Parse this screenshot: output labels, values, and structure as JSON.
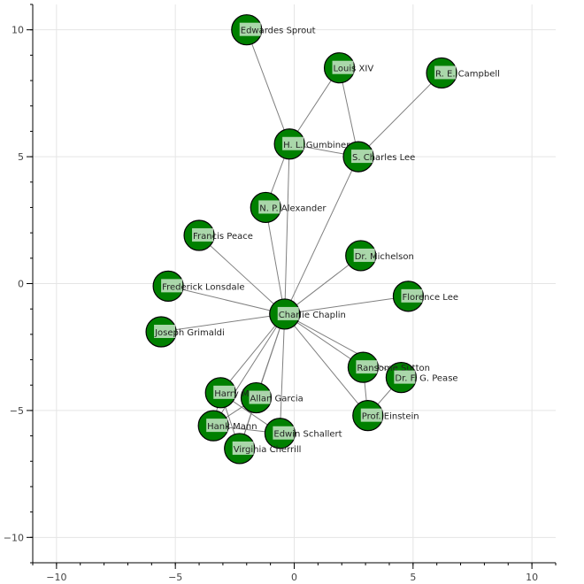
{
  "chart_data": {
    "type": "network",
    "title": "",
    "xlabel": "",
    "ylabel": "",
    "xlim": [
      -11,
      11
    ],
    "ylim": [
      -11,
      11
    ],
    "xticks": [
      -10,
      -5,
      0,
      5,
      10
    ],
    "yticks": [
      -10,
      -5,
      0,
      5,
      10
    ],
    "xtick_labels": [
      "−10",
      "−5",
      "0",
      "5",
      "10"
    ],
    "ytick_labels": [
      "−10",
      "−5",
      "0",
      "5",
      "10"
    ],
    "grid": true,
    "colors": {
      "node_fill": "#008000",
      "node_stroke": "#000000",
      "edge": "#808080",
      "label_bg": "#c8e6c8",
      "grid": "#e5e5e5",
      "axis": "#000000"
    },
    "nodes": [
      {
        "name": "Charlie Chaplin",
        "x": -0.4,
        "y": -1.2
      },
      {
        "name": "Edwardes Sprout",
        "x": -2.0,
        "y": 10.0
      },
      {
        "name": "Louis XIV",
        "x": 1.9,
        "y": 8.5
      },
      {
        "name": "R. E. Campbell",
        "x": 6.2,
        "y": 8.3
      },
      {
        "name": "H. L. Gumbiner",
        "x": -0.2,
        "y": 5.5
      },
      {
        "name": "S. Charles Lee",
        "x": 2.7,
        "y": 5.0
      },
      {
        "name": "N. P. Alexander",
        "x": -1.2,
        "y": 3.0
      },
      {
        "name": "Francis Peace",
        "x": -4.0,
        "y": 1.9
      },
      {
        "name": "Dr. Michelson",
        "x": 2.8,
        "y": 1.1
      },
      {
        "name": "Frederick Lonsdale",
        "x": -5.3,
        "y": -0.1
      },
      {
        "name": "Florence Lee",
        "x": 4.8,
        "y": -0.5
      },
      {
        "name": "Joseph Grimaldi",
        "x": -5.6,
        "y": -1.9
      },
      {
        "name": "Ransome Sutton",
        "x": 2.9,
        "y": -3.3
      },
      {
        "name": "Dr. F. G. Pease",
        "x": 4.5,
        "y": -3.7
      },
      {
        "name": "Harry Myers",
        "x": -3.1,
        "y": -4.3
      },
      {
        "name": "Allan Garcia",
        "x": -1.6,
        "y": -4.5
      },
      {
        "name": "Prof. Einstein",
        "x": 3.1,
        "y": -5.2
      },
      {
        "name": "Hank Mann",
        "x": -3.4,
        "y": -5.6
      },
      {
        "name": "Edwin Schallert",
        "x": -0.6,
        "y": -5.9
      },
      {
        "name": "Virginia Cherrill",
        "x": -2.3,
        "y": -6.5
      }
    ],
    "edges": [
      [
        "Charlie Chaplin",
        "H. L. Gumbiner"
      ],
      [
        "Charlie Chaplin",
        "S. Charles Lee"
      ],
      [
        "Charlie Chaplin",
        "N. P. Alexander"
      ],
      [
        "Charlie Chaplin",
        "Francis Peace"
      ],
      [
        "Charlie Chaplin",
        "Dr. Michelson"
      ],
      [
        "Charlie Chaplin",
        "Frederick Lonsdale"
      ],
      [
        "Charlie Chaplin",
        "Florence Lee"
      ],
      [
        "Charlie Chaplin",
        "Joseph Grimaldi"
      ],
      [
        "Charlie Chaplin",
        "Ransome Sutton"
      ],
      [
        "Charlie Chaplin",
        "Dr. F. G. Pease"
      ],
      [
        "Charlie Chaplin",
        "Prof. Einstein"
      ],
      [
        "Charlie Chaplin",
        "Harry Myers"
      ],
      [
        "Charlie Chaplin",
        "Allan Garcia"
      ],
      [
        "Charlie Chaplin",
        "Hank Mann"
      ],
      [
        "Charlie Chaplin",
        "Edwin Schallert"
      ],
      [
        "Charlie Chaplin",
        "Virginia Cherrill"
      ],
      [
        "Edwardes Sprout",
        "H. L. Gumbiner"
      ],
      [
        "Louis XIV",
        "H. L. Gumbiner"
      ],
      [
        "Louis XIV",
        "S. Charles Lee"
      ],
      [
        "R. E. Campbell",
        "S. Charles Lee"
      ],
      [
        "H. L. Gumbiner",
        "S. Charles Lee"
      ],
      [
        "H. L. Gumbiner",
        "N. P. Alexander"
      ],
      [
        "Ransome Sutton",
        "Prof. Einstein"
      ],
      [
        "Prof. Einstein",
        "Dr. F. G. Pease"
      ],
      [
        "Harry Myers",
        "Hank Mann"
      ],
      [
        "Harry Myers",
        "Virginia Cherrill"
      ],
      [
        "Harry Myers",
        "Edwin Schallert"
      ],
      [
        "Allan Garcia",
        "Hank Mann"
      ],
      [
        "Allan Garcia",
        "Virginia Cherrill"
      ],
      [
        "Hank Mann",
        "Edwin Schallert"
      ]
    ]
  }
}
